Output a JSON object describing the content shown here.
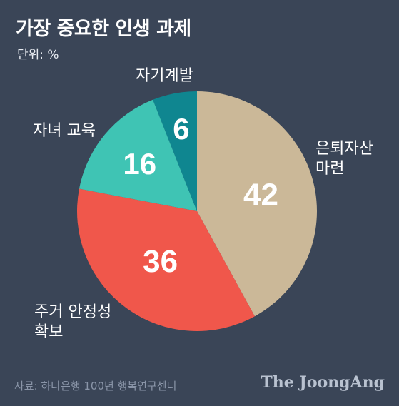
{
  "title": "가장 중요한 인생 과제",
  "unit": "단위: %",
  "source": "자료: 하나은행 100년 행복연구센터",
  "brand": "The JoongAng",
  "chart_data": {
    "type": "pie",
    "title": "가장 중요한 인생 과제",
    "unit": "%",
    "slices": [
      {
        "label_lines": [
          "은퇴자산",
          "마련"
        ],
        "value": 42,
        "color": "#cbb898"
      },
      {
        "label_lines": [
          "주거 안정성",
          "확보"
        ],
        "value": 36,
        "color": "#f0574b"
      },
      {
        "label_lines": [
          "자녀 교육"
        ],
        "value": 16,
        "color": "#3fc4b4"
      },
      {
        "label_lines": [
          "자기계발"
        ],
        "value": 6,
        "color": "#0f8690"
      }
    ]
  }
}
